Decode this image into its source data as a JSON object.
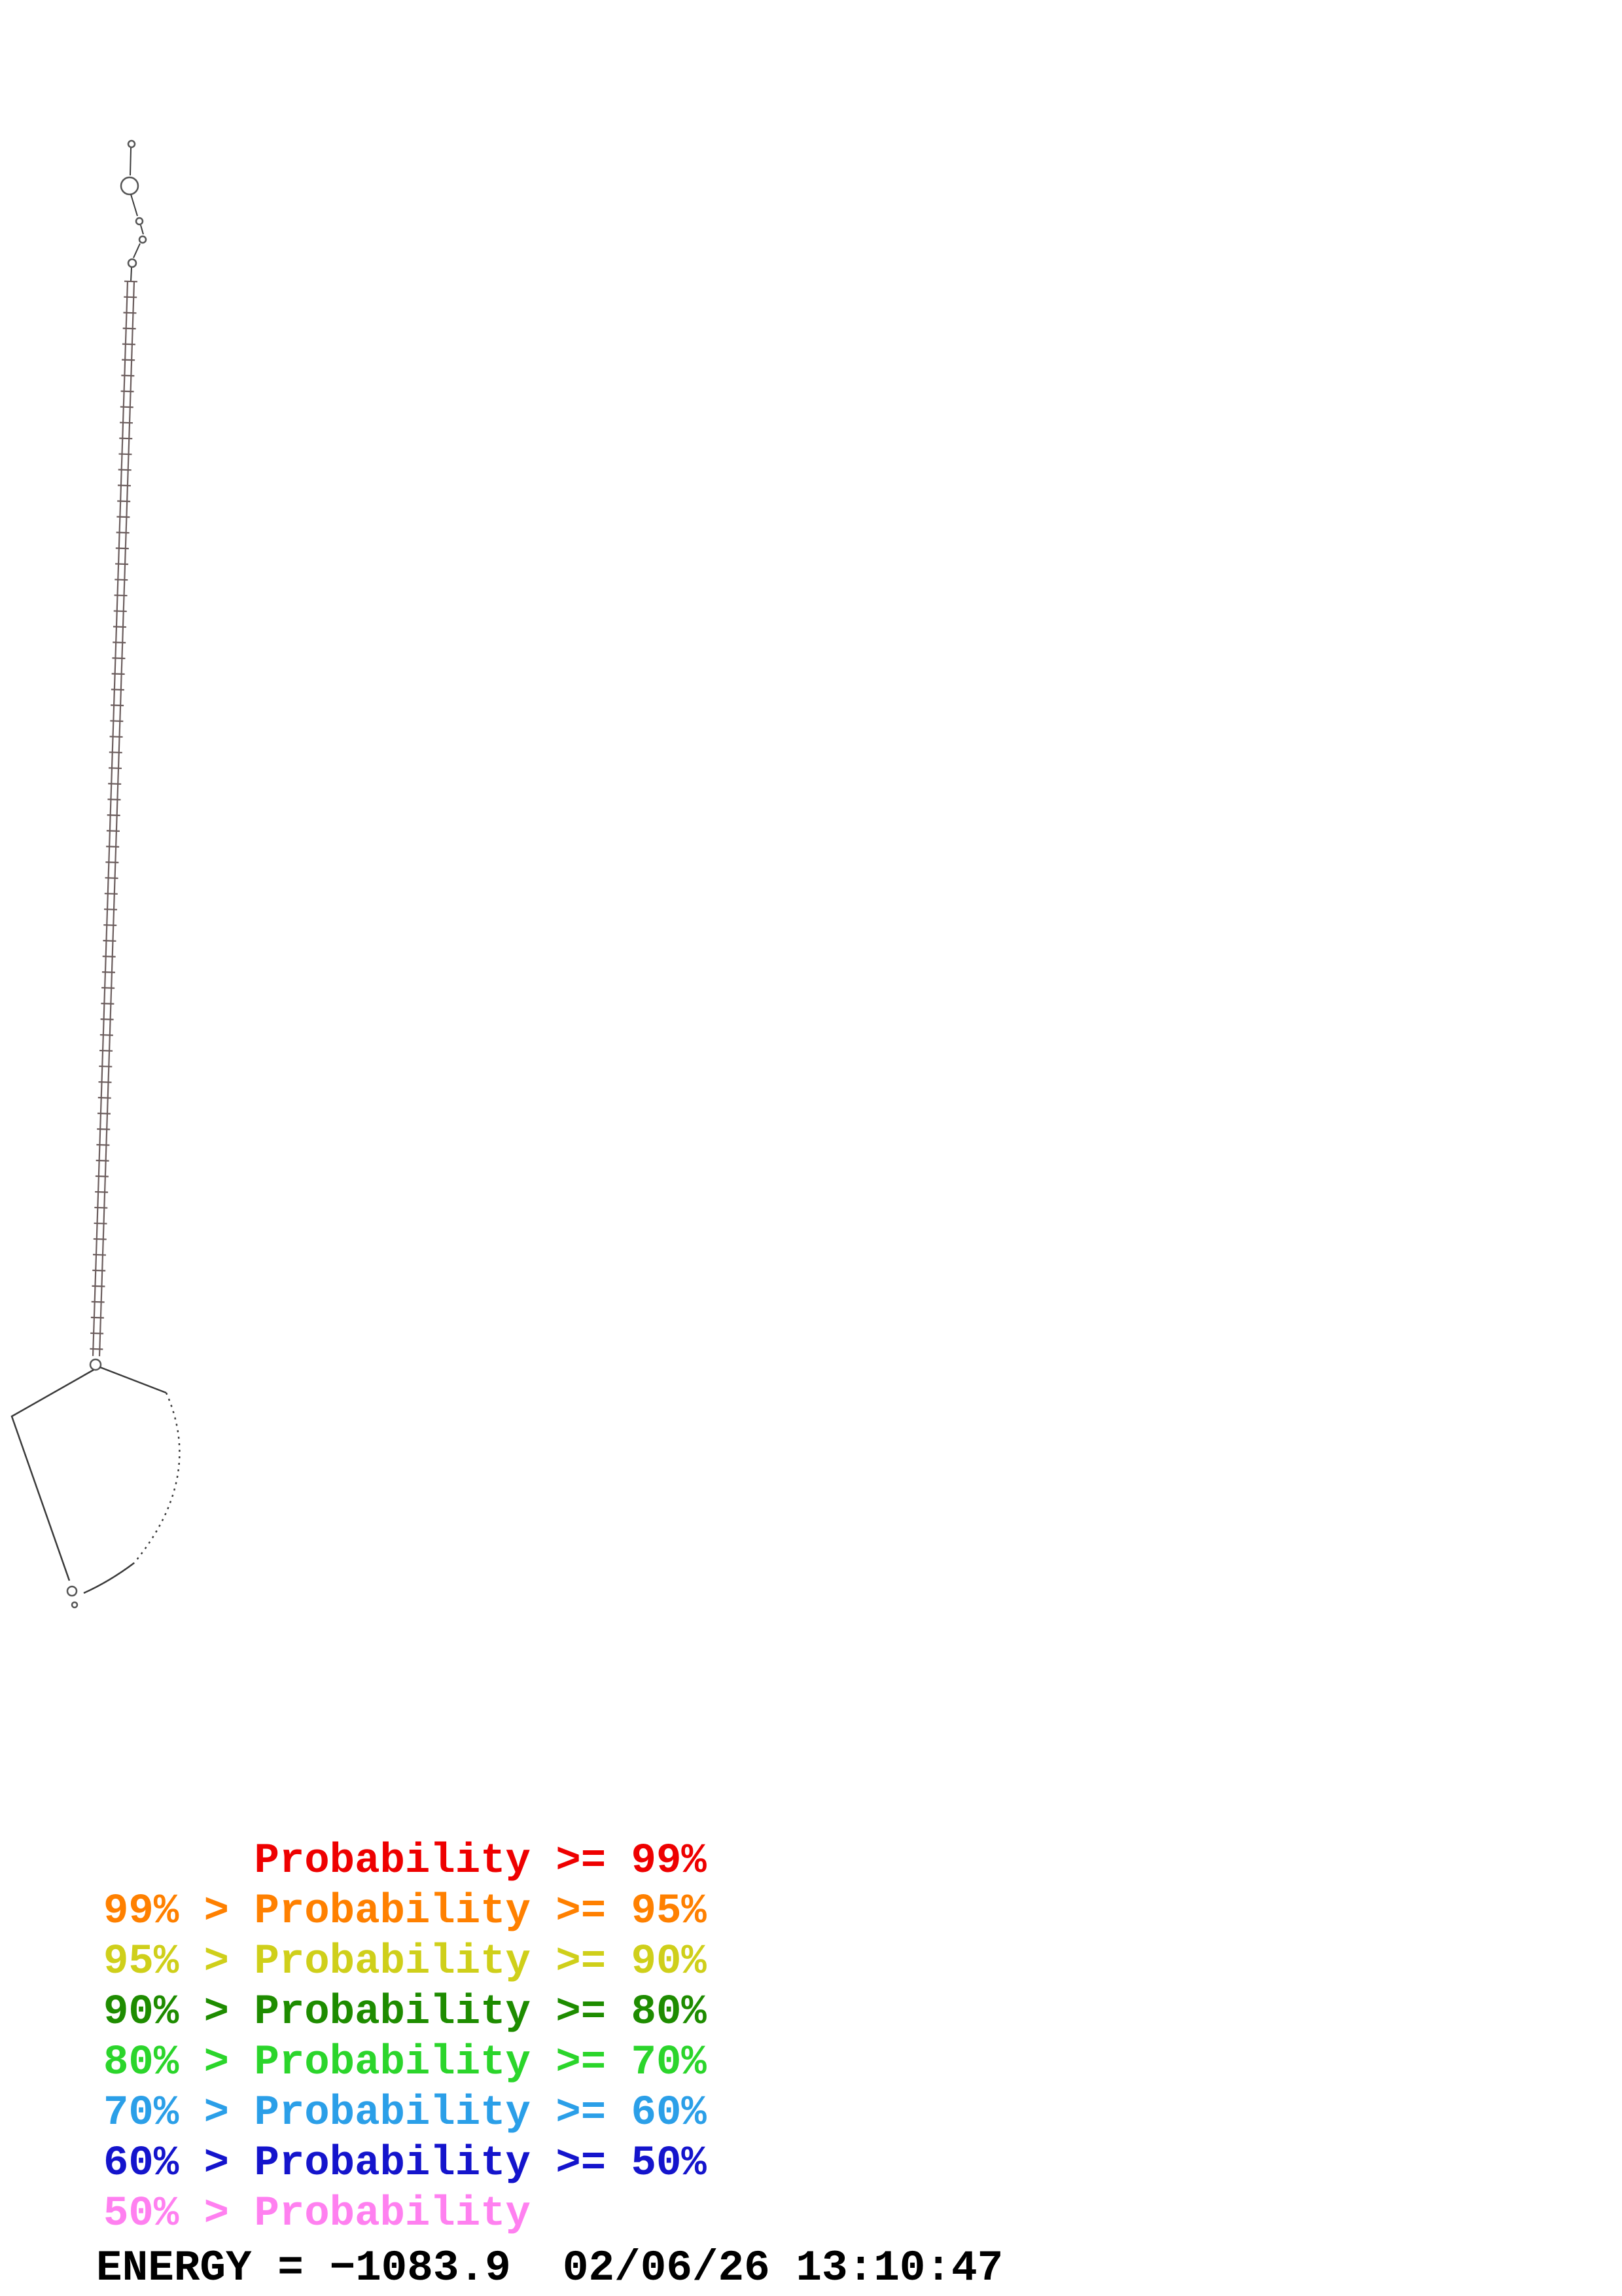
{
  "page": {
    "background": "#ffffff",
    "kind": "rna-secondary-structure-probability-plot"
  },
  "legend": {
    "items": [
      {
        "text": "      Probability >= 99%",
        "color": "#ee0000"
      },
      {
        "text": "99% > Probability >= 95%",
        "color": "#ff8000"
      },
      {
        "text": "95% > Probability >= 90%",
        "color": "#cfcf1a"
      },
      {
        "text": "90% > Probability >= 80%",
        "color": "#1e8c00"
      },
      {
        "text": "80% > Probability >= 70%",
        "color": "#2bd52b"
      },
      {
        "text": "70% > Probability >= 60%",
        "color": "#2b9fe8"
      },
      {
        "text": "60% > Probability >= 50%",
        "color": "#1414cc"
      },
      {
        "text": "50% > Probability",
        "color": "#ff80f0"
      }
    ]
  },
  "footer": {
    "energy_line": "ENERGY = −1083.9  02/06/26 13:10:47",
    "energy_label": "ENERGY",
    "energy_value": "-1083.9",
    "datetime": "02/06/26 13:10:47"
  },
  "structure": {
    "description": "long thin RNA stem (helix ladder) running from top-left downward, small terminal loop and bulges at the top, large open multiloop polygon at the bottom",
    "stroke_stem": "#6b5d5d",
    "stroke_loop": "#3a3a3a",
    "stroke_circles": "#555555"
  }
}
